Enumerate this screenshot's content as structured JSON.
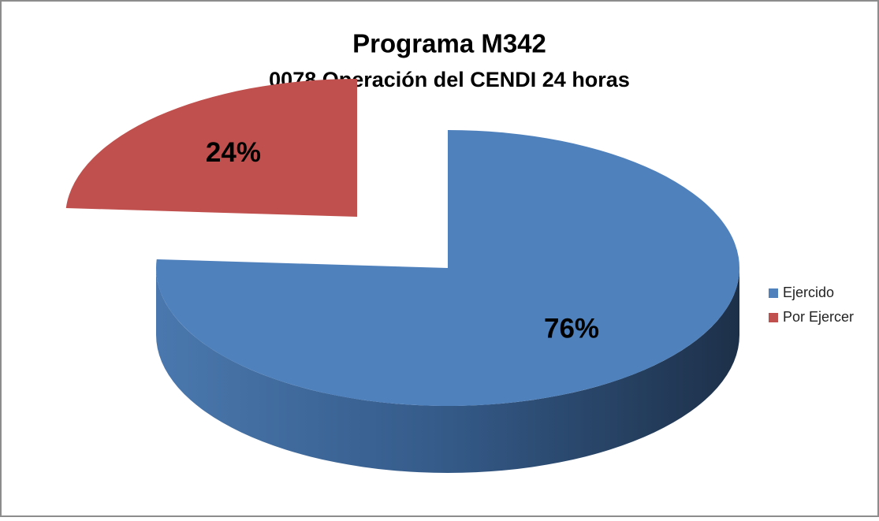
{
  "chart_data": {
    "type": "pie3d",
    "title": "Programa M342",
    "subtitle": "0078 Operación del CENDI 24 horas",
    "categories": [
      "Ejercido",
      "Por Ejercer"
    ],
    "values": [
      76,
      24
    ],
    "value_labels": [
      "76%",
      "24%"
    ],
    "colors": [
      "#4f81bd",
      "#c0504d"
    ],
    "legend": "right"
  }
}
